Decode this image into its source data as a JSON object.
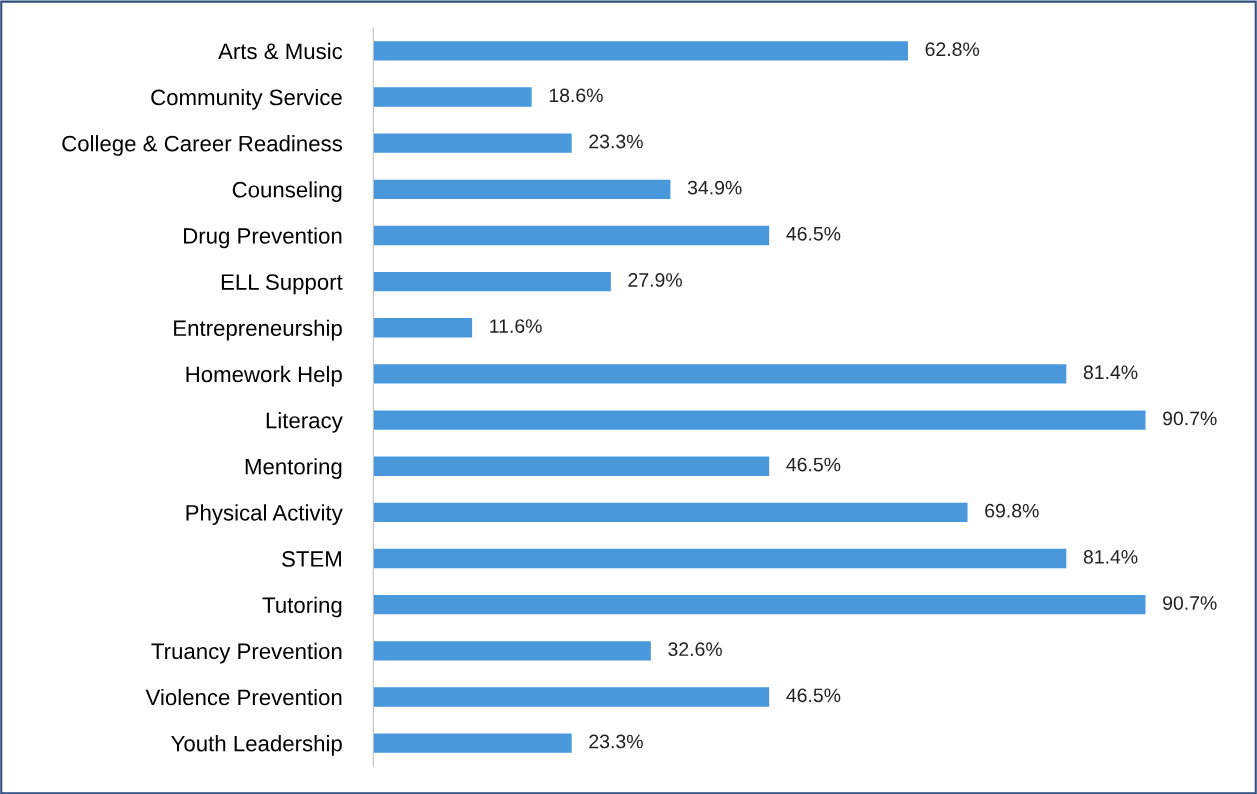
{
  "chart_data": {
    "type": "bar",
    "orientation": "horizontal",
    "categories": [
      "Arts & Music",
      "Community Service",
      "College & Career Readiness",
      "Counseling",
      "Drug Prevention",
      "ELL Support",
      "Entrepreneurship",
      "Homework Help",
      "Literacy",
      "Mentoring",
      "Physical Activity",
      "STEM",
      "Tutoring",
      "Truancy Prevention",
      "Violence Prevention",
      "Youth Leadership"
    ],
    "values": [
      62.8,
      18.6,
      23.3,
      34.9,
      46.5,
      27.9,
      11.6,
      81.4,
      90.7,
      46.5,
      69.8,
      81.4,
      90.7,
      32.6,
      46.5,
      23.3
    ],
    "value_labels": [
      "62.8%",
      "18.6%",
      "23.3%",
      "34.9%",
      "46.5%",
      "27.9%",
      "11.6%",
      "81.4%",
      "90.7%",
      "46.5%",
      "69.8%",
      "81.4%",
      "90.7%",
      "32.6%",
      "46.5%",
      "23.3%"
    ],
    "color": "#4a98dc",
    "tick_labels": "y",
    "grid": false,
    "legend": false
  }
}
